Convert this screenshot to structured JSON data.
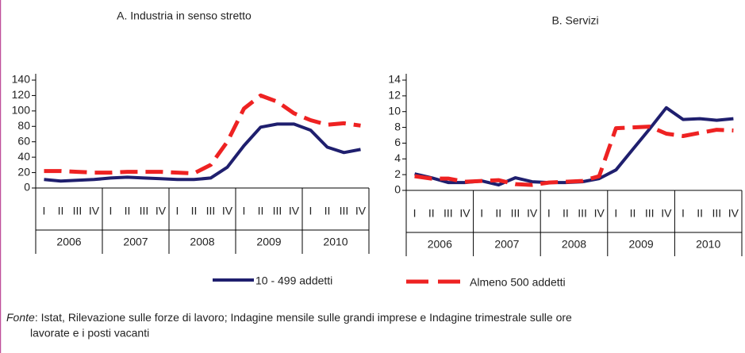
{
  "charts": [
    {
      "type": "line",
      "title": "A. Industria in senso stretto",
      "categories": [
        "I",
        "II",
        "III",
        "IV",
        "I",
        "II",
        "III",
        "IV",
        "I",
        "II",
        "III",
        "IV",
        "I",
        "II",
        "III",
        "IV",
        "I",
        "II",
        "III",
        "IV"
      ],
      "years": [
        "2006",
        "2007",
        "2008",
        "2009",
        "2010"
      ],
      "ylim": [
        0,
        140
      ],
      "yticks": [
        0,
        20,
        40,
        60,
        80,
        100,
        120,
        140
      ],
      "series": [
        {
          "name": "10 - 499 addetti",
          "color": "#1f1f6e",
          "dash": false,
          "values": [
            11,
            9,
            10,
            11,
            13,
            14,
            13,
            12,
            11,
            11,
            13,
            27,
            55,
            79,
            83,
            83,
            75,
            53,
            46,
            50
          ]
        },
        {
          "name": "Almeno 500 addetti",
          "color": "#ee2222",
          "dash": true,
          "values": [
            22,
            22,
            21,
            20,
            20,
            21,
            21,
            21,
            20,
            19,
            30,
            60,
            103,
            120,
            112,
            97,
            88,
            82,
            84,
            81
          ]
        }
      ]
    },
    {
      "type": "line",
      "title": "B. Servizi",
      "categories": [
        "I",
        "II",
        "III",
        "IV",
        "I",
        "II",
        "III",
        "IV",
        "I",
        "II",
        "III",
        "IV",
        "I",
        "II",
        "III",
        "IV",
        "I",
        "II",
        "III",
        "IV"
      ],
      "years": [
        "2006",
        "2007",
        "2008",
        "2009",
        "2010"
      ],
      "ylim": [
        0,
        14
      ],
      "yticks": [
        0,
        2,
        4,
        6,
        8,
        10,
        12,
        14
      ],
      "series": [
        {
          "name": "10 - 499 addetti",
          "color": "#1f1f6e",
          "dash": false,
          "values": [
            2.1,
            1.6,
            1.0,
            1.0,
            1.2,
            0.7,
            1.6,
            1.1,
            1.0,
            1.0,
            1.1,
            1.5,
            2.6,
            5.2,
            7.8,
            10.5,
            9.0,
            9.1,
            8.9,
            9.1
          ]
        },
        {
          "name": "Almeno 500 addetti",
          "color": "#ee2222",
          "dash": true,
          "values": [
            1.8,
            1.5,
            1.5,
            1.1,
            1.2,
            1.3,
            0.8,
            0.7,
            1.0,
            1.1,
            1.2,
            1.8,
            7.9,
            8.0,
            8.1,
            7.2,
            6.9,
            7.3,
            7.7,
            7.6
          ]
        }
      ]
    }
  ],
  "footnote": {
    "source_label": "Fonte",
    "line1": ": Istat, Rilevazione sulle forze di lavoro; Indagine mensile sulle grandi imprese e Indagine trimestrale sulle ore",
    "line2": "lavorate e i posti vacanti"
  }
}
